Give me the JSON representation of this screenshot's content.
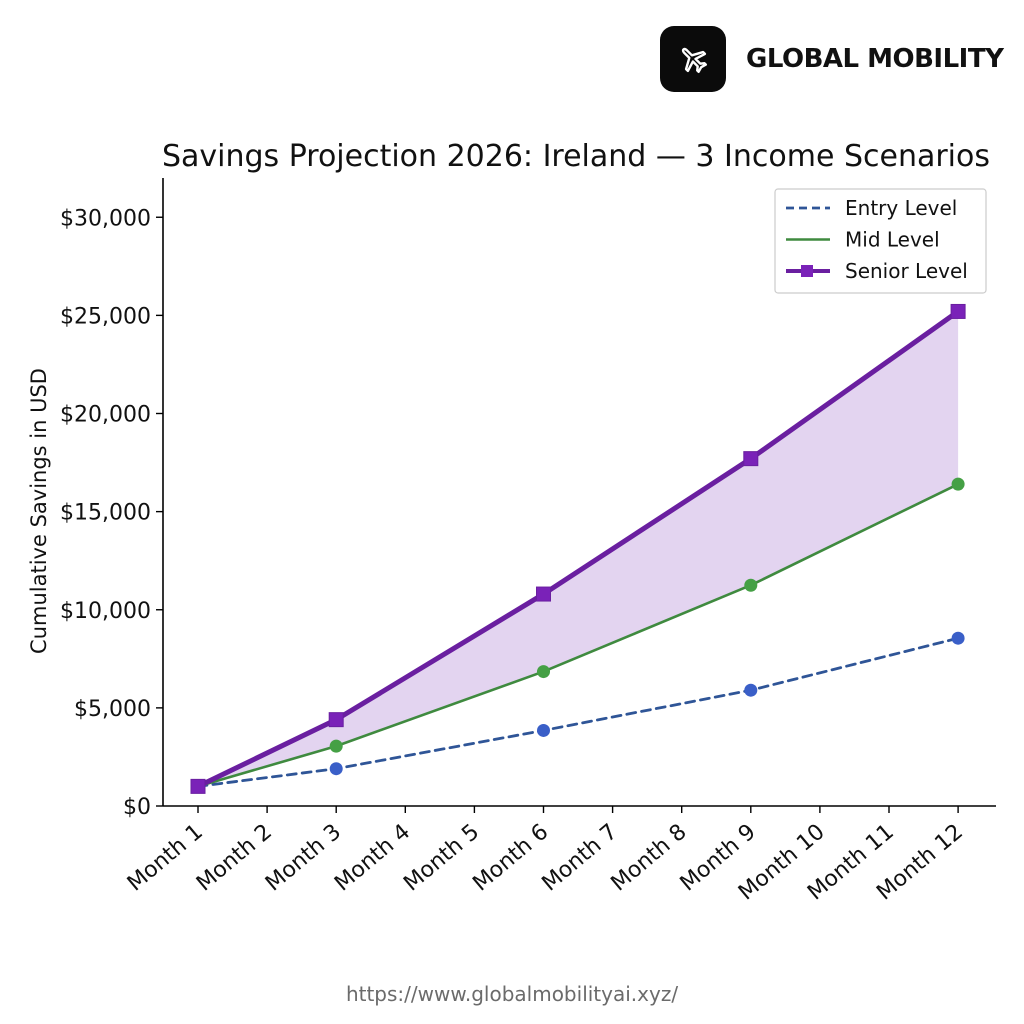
{
  "brand": {
    "name": "GLOBAL MOBILITY",
    "icon": "airplane-icon"
  },
  "footer": {
    "url": "https://www.globalmobilityai.xyz/"
  },
  "colors": {
    "entry": "#2f5597",
    "entry_marker": "#3a5fc8",
    "mid": "#3f8a3f",
    "mid_marker": "#45a045",
    "senior": "#6a1fa0",
    "senior_marker": "#7a22b8",
    "fill": "#dcc9ec",
    "axis": "#000000"
  },
  "chart_data": {
    "type": "line",
    "title": "Savings Projection 2026: Ireland — 3 Income Scenarios",
    "xlabel": "",
    "ylabel": "Cumulative Savings in USD",
    "categories": [
      "Month 1",
      "Month 2",
      "Month 3",
      "Month 4",
      "Month 5",
      "Month 6",
      "Month 7",
      "Month 8",
      "Month 9",
      "Month 10",
      "Month 11",
      "Month 12"
    ],
    "y_ticks": [
      0,
      5000,
      10000,
      15000,
      20000,
      25000,
      30000
    ],
    "y_tick_labels": [
      "$0",
      "$5,000",
      "$10,000",
      "$15,000",
      "$20,000",
      "$25,000",
      "$30,000"
    ],
    "ylim": [
      0,
      32000
    ],
    "grid": false,
    "legend_position": "top-right",
    "fill_between": [
      "Mid Level",
      "Senior Level"
    ],
    "series": [
      {
        "name": "Entry Level",
        "style": "dashed",
        "marker": "circle",
        "x": [
          "Month 1",
          "Month 3",
          "Month 6",
          "Month 9",
          "Month 12"
        ],
        "values": [
          1000,
          1900,
          3850,
          5900,
          8550
        ]
      },
      {
        "name": "Mid Level",
        "style": "solid",
        "marker": "circle",
        "x": [
          "Month 1",
          "Month 3",
          "Month 6",
          "Month 9",
          "Month 12"
        ],
        "values": [
          1000,
          3050,
          6850,
          11250,
          16400
        ]
      },
      {
        "name": "Senior Level",
        "style": "solid-thick",
        "marker": "square",
        "x": [
          "Month 1",
          "Month 3",
          "Month 6",
          "Month 9",
          "Month 12"
        ],
        "values": [
          1000,
          4400,
          10800,
          17700,
          25200
        ]
      }
    ]
  }
}
